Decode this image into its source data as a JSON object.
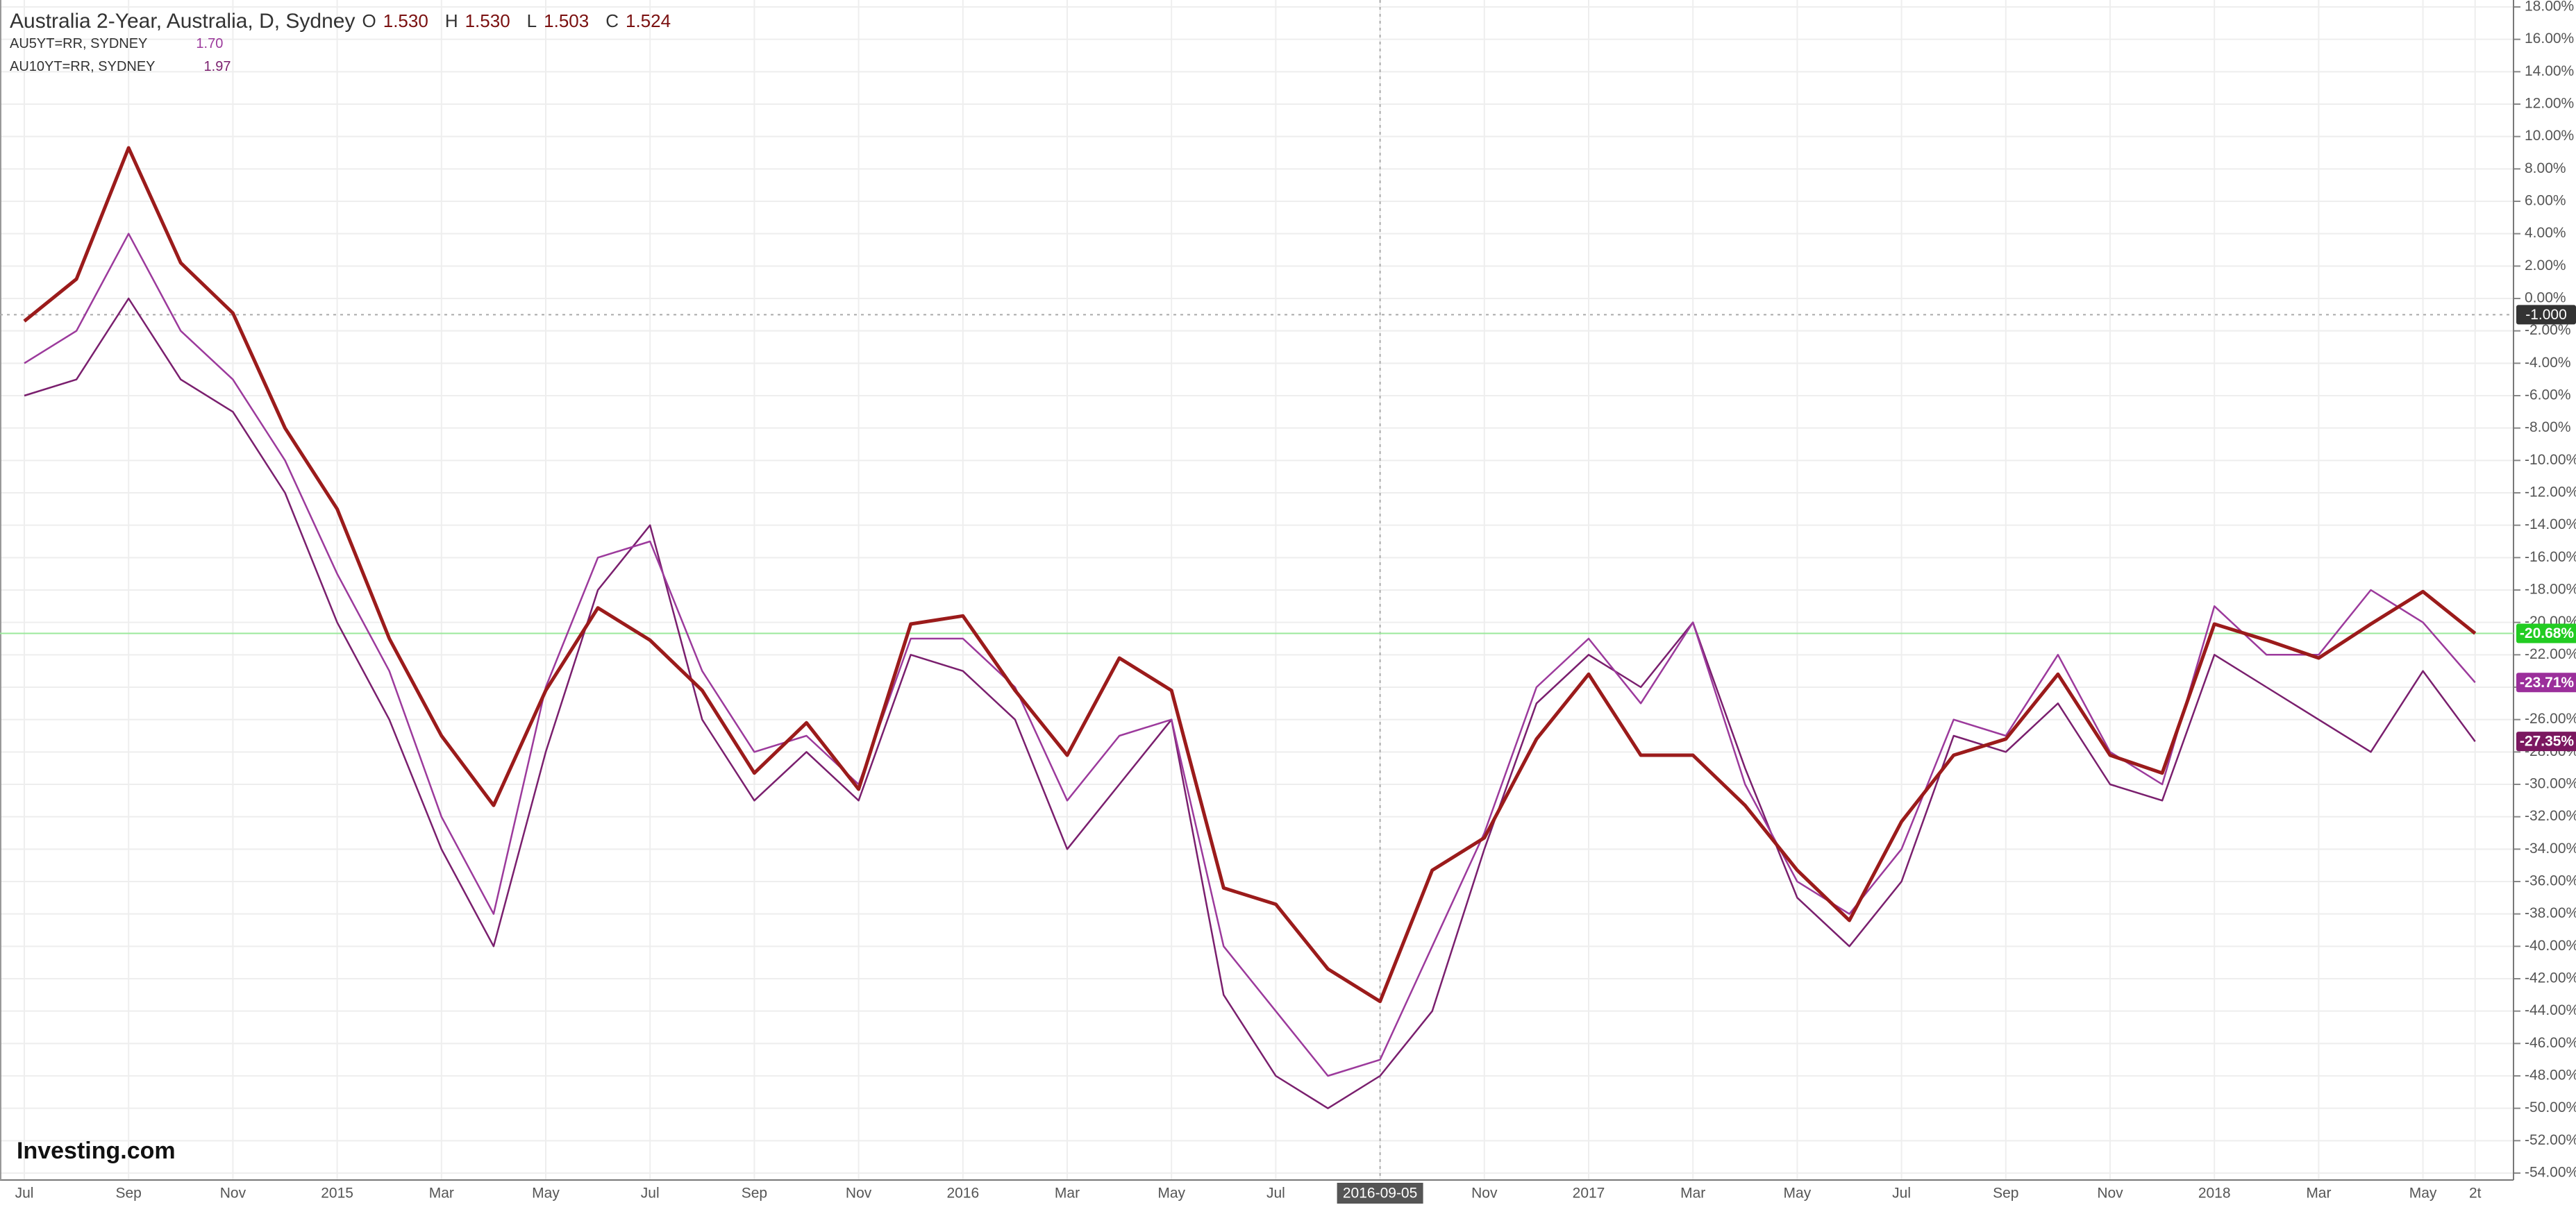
{
  "chart_data": {
    "type": "line",
    "categories": [
      "Jul",
      null,
      "Sep",
      null,
      "Nov",
      null,
      "2015",
      null,
      "Mar",
      null,
      "May",
      null,
      "Jul",
      null,
      "Sep",
      null,
      "Nov",
      null,
      "2016",
      null,
      "Mar",
      null,
      "May",
      null,
      "Jul",
      null,
      "2016-09-05",
      null,
      "Nov",
      null,
      "2017",
      null,
      "Mar",
      null,
      "May",
      null,
      "Jul",
      null,
      "Sep",
      null,
      "Nov",
      null,
      "2018",
      null,
      "Mar",
      null,
      "May",
      "2t"
    ],
    "series": [
      {
        "name": "Australia 2-Year, Australia, D, Sydney",
        "color": "#9b1b1b",
        "ohlc": [
          {
            "label": "O",
            "value": "1.530"
          },
          {
            "label": "H",
            "value": "1.530"
          },
          {
            "label": "L",
            "value": "1.503"
          },
          {
            "label": "C",
            "value": "1.524"
          }
        ],
        "last_label": "-20.68%",
        "badge_color": "#22cc22",
        "values": [
          -1.4,
          1.2,
          9.3,
          2.2,
          -0.9,
          -8,
          -13,
          -21,
          -27,
          -31.3,
          -24.2,
          -19.1,
          -21.1,
          -24.2,
          -29.3,
          -26.2,
          -30.3,
          -20.1,
          -19.6,
          -24.2,
          -28.2,
          -22.2,
          -24.2,
          -36.4,
          -37.4,
          -41.4,
          -43.4,
          -35.3,
          -33.3,
          -27.2,
          -23.2,
          -28.2,
          -28.2,
          -31.3,
          -35.3,
          -38.4,
          -32.3,
          -28.2,
          -27.2,
          -23.2,
          -28.2,
          -29.3,
          -20.1,
          -21.1,
          -22.2,
          -20.1,
          -18.1,
          -20.68
        ]
      },
      {
        "name": "AU5YT=RR, SYDNEY",
        "color": "#9c3a9c",
        "legend_value": "1.70",
        "last_label": "-23.71%",
        "badge_color": "#9b2f9b",
        "values": [
          -4,
          -2,
          4,
          -2,
          -5,
          -10,
          -17,
          -23,
          -32,
          -38,
          -24,
          -16,
          -15,
          -23,
          -28,
          -27,
          -30,
          -21,
          -21,
          -24,
          -31,
          -27,
          -26,
          -40,
          -44,
          -48,
          -47,
          -40,
          -33,
          -24,
          -21,
          -25,
          -20,
          -30,
          -36,
          -38,
          -34,
          -26,
          -27,
          -22,
          -28,
          -30,
          -19,
          -22,
          -22,
          -18,
          -20,
          -23.71
        ]
      },
      {
        "name": "AU10YT=RR, SYDNEY",
        "color": "#7a1f6e",
        "legend_value": "1.97",
        "last_label": "-27.35%",
        "badge_color": "#7b1860",
        "values": [
          -6,
          -5,
          0,
          -5,
          -7,
          -12,
          -20,
          -26,
          -34,
          -40,
          -28,
          -18,
          -14,
          -26,
          -31,
          -28,
          -31,
          -22,
          -23,
          -26,
          -34,
          -30,
          -26,
          -43,
          -48,
          -50,
          -48,
          -44,
          -34,
          -25,
          -22,
          -24,
          -20,
          -29,
          -37,
          -40,
          -36,
          -27,
          -28,
          -25,
          -30,
          -31,
          -22,
          -24,
          -26,
          -28,
          -23,
          -27.35
        ]
      }
    ],
    "crosshair": {
      "value": -1,
      "label": "-1.000"
    },
    "logo": "Investing.com",
    "grid": true,
    "ylim": [
      -54,
      18
    ],
    "yticks": [
      {
        "value": 18,
        "label": "18.00%"
      },
      {
        "value": 16,
        "label": "16.00%"
      },
      {
        "value": 14,
        "label": "14.00%"
      },
      {
        "value": 12,
        "label": "12.00%"
      },
      {
        "value": 10,
        "label": "10.00%"
      },
      {
        "value": 8,
        "label": "8.00%"
      },
      {
        "value": 6,
        "label": "6.00%"
      },
      {
        "value": 4,
        "label": "4.00%"
      },
      {
        "value": 2,
        "label": "2.00%"
      },
      {
        "value": 0,
        "label": "0.00%"
      },
      {
        "value": -2,
        "label": "-2.00%"
      },
      {
        "value": -4,
        "label": "-4.00%"
      },
      {
        "value": -6,
        "label": "-6.00%"
      },
      {
        "value": -8,
        "label": "-8.00%"
      },
      {
        "value": -10,
        "label": "-10.00%"
      },
      {
        "value": -12,
        "label": "-12.00%"
      },
      {
        "value": -14,
        "label": "-14.00%"
      },
      {
        "value": -16,
        "label": "-16.00%"
      },
      {
        "value": -18,
        "label": "-18.00%"
      },
      {
        "value": -20,
        "label": "-20.00%"
      },
      {
        "value": -22,
        "label": "-22.00%"
      },
      {
        "value": -24,
        "label": "-24.00%"
      },
      {
        "value": -26,
        "label": "-26.00%"
      },
      {
        "value": -28,
        "label": "-28.00%"
      },
      {
        "value": -30,
        "label": "-30.00%"
      },
      {
        "value": -32,
        "label": "-32.00%"
      },
      {
        "value": -34,
        "label": "-34.00%"
      },
      {
        "value": -36,
        "label": "-36.00%"
      },
      {
        "value": -38,
        "label": "-38.00%"
      },
      {
        "value": -40,
        "label": "-40.00%"
      },
      {
        "value": -42,
        "label": "-42.00%"
      },
      {
        "value": -44,
        "label": "-44.00%"
      },
      {
        "value": -46,
        "label": "-46.00%"
      },
      {
        "value": -48,
        "label": "-48.00%"
      },
      {
        "value": -50,
        "label": "-50.00%"
      },
      {
        "value": -52,
        "label": "-52.00%"
      },
      {
        "value": -54,
        "label": "-54.00%"
      }
    ]
  }
}
